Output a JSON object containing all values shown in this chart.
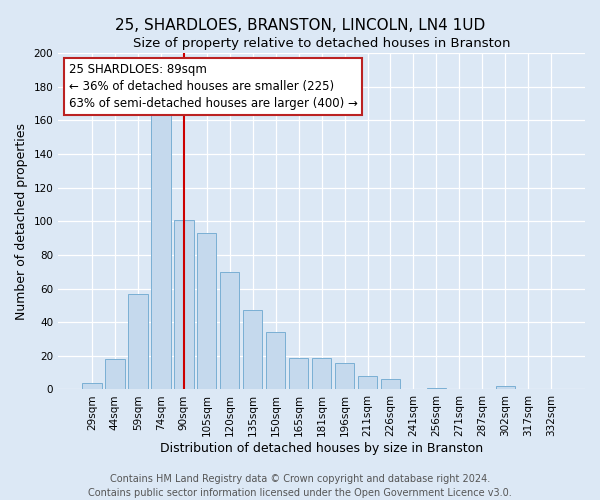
{
  "title": "25, SHARDLOES, BRANSTON, LINCOLN, LN4 1UD",
  "subtitle": "Size of property relative to detached houses in Branston",
  "xlabel": "Distribution of detached houses by size in Branston",
  "ylabel": "Number of detached properties",
  "bar_labels": [
    "29sqm",
    "44sqm",
    "59sqm",
    "74sqm",
    "90sqm",
    "105sqm",
    "120sqm",
    "135sqm",
    "150sqm",
    "165sqm",
    "181sqm",
    "196sqm",
    "211sqm",
    "226sqm",
    "241sqm",
    "256sqm",
    "271sqm",
    "287sqm",
    "302sqm",
    "317sqm",
    "332sqm"
  ],
  "bar_values": [
    4,
    18,
    57,
    165,
    101,
    93,
    70,
    47,
    34,
    19,
    19,
    16,
    8,
    6,
    0,
    1,
    0,
    0,
    2,
    0,
    0
  ],
  "bar_color": "#c5d9ed",
  "bar_edgecolor": "#7aafd4",
  "vline_x_index": 4,
  "vline_color": "#cc0000",
  "annotation_line1": "25 SHARDLOES: 89sqm",
  "annotation_line2": "← 36% of detached houses are smaller (225)",
  "annotation_line3": "63% of semi-detached houses are larger (400) →",
  "ylim": [
    0,
    200
  ],
  "yticks": [
    0,
    20,
    40,
    60,
    80,
    100,
    120,
    140,
    160,
    180,
    200
  ],
  "footer1": "Contains HM Land Registry data © Crown copyright and database right 2024.",
  "footer2": "Contains public sector information licensed under the Open Government Licence v3.0.",
  "background_color": "#dce8f5",
  "title_fontsize": 11,
  "subtitle_fontsize": 9.5,
  "axis_label_fontsize": 9,
  "tick_fontsize": 7.5,
  "annotation_fontsize": 8.5,
  "footer_fontsize": 7
}
